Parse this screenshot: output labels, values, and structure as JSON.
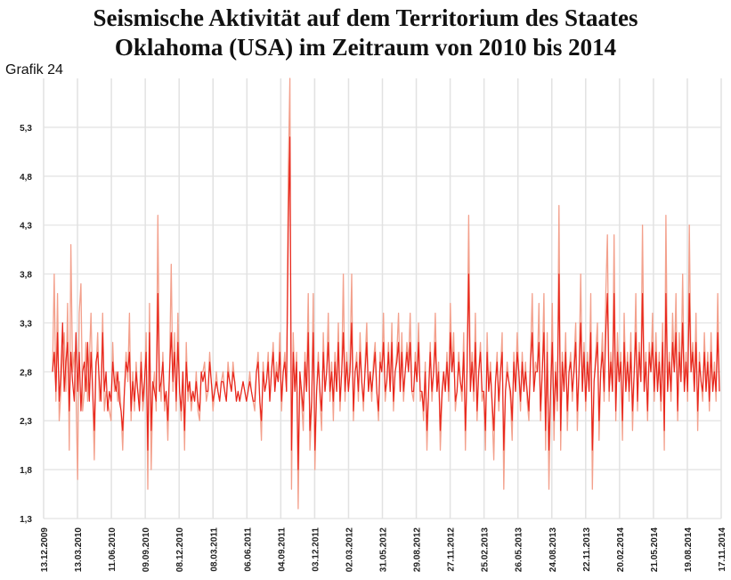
{
  "title_lines": [
    "Seismische Aktivität auf dem Territorium des Staates",
    "Oklahoma (USA) im Zeitraum von 2010 bis 2014"
  ],
  "caption": "Grafik 24",
  "colors": {
    "line_dark": "#e8261c",
    "line_light": "#f3a08c",
    "grid": "#e2e2e2"
  },
  "chart_data": {
    "type": "line",
    "ylim": [
      1.3,
      5.8
    ],
    "y_ticks": [
      "5,3",
      "4,8",
      "4,3",
      "3,8",
      "3,3",
      "2,8",
      "2,3",
      "1,8",
      "1,3"
    ],
    "y_tick_values": [
      5.3,
      4.8,
      4.3,
      3.8,
      3.3,
      2.8,
      2.3,
      1.8,
      1.3
    ],
    "x_ticks": [
      "13.12.2009",
      "13.03.2010",
      "11.06.2010",
      "09.09.2010",
      "08.12.2010",
      "08.03.2011",
      "06.06.2011",
      "04.09.2011",
      "03.12.2011",
      "02.03.2012",
      "31.05.2012",
      "29.08.2012",
      "27.11.2012",
      "25.02.2013",
      "26.05.2013",
      "24.08.2013",
      "22.11.2013",
      "20.02.2014",
      "21.05.2014",
      "19.08.2014",
      "17.11.2014"
    ],
    "grid": true,
    "legend": "none",
    "series": [
      {
        "values": [
          2.8,
          3.8,
          2.5,
          3.6,
          2.3,
          2.6,
          3.0,
          3.2,
          2.6,
          3.5,
          2.0,
          4.1,
          2.8,
          3.0,
          2.6,
          1.7,
          3.4,
          3.7,
          2.4,
          2.6,
          3.1,
          2.5,
          2.9,
          3.4,
          2.6,
          1.9,
          2.8,
          3.2,
          2.5,
          2.6,
          3.4,
          2.4,
          2.6,
          2.5,
          2.4,
          2.3,
          3.1,
          2.6,
          2.8,
          2.5,
          2.7,
          2.4,
          2.0,
          2.6,
          3.0,
          2.7,
          3.4,
          2.3,
          2.8,
          2.4,
          2.9,
          2.6,
          2.5,
          3.0,
          2.4,
          2.6,
          3.2,
          1.6,
          3.5,
          1.8,
          2.6,
          2.8,
          2.4,
          4.4,
          2.7,
          2.5,
          3.0,
          2.4,
          2.6,
          2.1,
          2.8,
          3.9,
          2.6,
          3.2,
          2.4,
          3.4,
          2.6,
          2.3,
          2.8,
          2.0,
          3.1,
          2.5,
          2.7,
          2.4,
          2.6,
          2.5,
          2.8,
          2.4,
          2.3,
          2.8,
          2.8,
          2.9,
          2.5,
          2.6,
          3.0,
          2.7,
          2.4,
          2.6,
          2.8,
          2.6,
          2.5,
          2.7,
          2.8,
          2.6,
          2.5,
          2.9,
          2.7,
          2.6,
          2.9,
          2.7,
          2.5,
          2.6,
          2.5,
          2.6,
          2.7,
          2.6,
          2.5,
          2.6,
          2.8,
          2.6,
          2.5,
          2.4,
          2.8,
          3.0,
          2.5,
          2.1,
          2.9,
          2.6,
          2.7,
          3.0,
          2.5,
          2.8,
          3.1,
          2.6,
          2.9,
          2.7,
          3.2,
          2.4,
          2.8,
          3.0,
          2.6,
          4.8,
          5.8,
          1.6,
          3.2,
          2.6,
          3.0,
          1.4,
          2.8,
          2.5,
          2.2,
          3.0,
          2.6,
          3.6,
          2.0,
          2.4,
          3.6,
          1.8,
          2.6,
          3.0,
          2.5,
          2.2,
          3.2,
          2.6,
          2.8,
          3.4,
          2.5,
          2.9,
          2.3,
          3.0,
          2.6,
          3.3,
          2.4,
          2.8,
          3.8,
          2.5,
          3.0,
          2.6,
          2.9,
          3.8,
          2.3,
          2.8,
          3.0,
          2.5,
          3.2,
          2.7,
          2.4,
          2.9,
          3.3,
          2.6,
          2.8,
          2.5,
          2.9,
          3.1,
          2.6,
          2.3,
          3.0,
          2.8,
          3.4,
          2.5,
          2.7,
          3.1,
          2.6,
          3.3,
          2.4,
          2.8,
          3.0,
          3.4,
          2.6,
          3.2,
          2.5,
          2.8,
          3.1,
          2.9,
          3.4,
          2.6,
          2.5,
          3.0,
          2.7,
          3.3,
          2.5,
          2.6,
          2.3,
          2.9,
          2.0,
          2.6,
          3.1,
          2.5,
          2.8,
          3.4,
          2.6,
          2.9,
          2.0,
          2.5,
          2.8,
          2.6,
          3.0,
          2.5,
          3.5,
          2.8,
          3.2,
          2.4,
          2.6,
          3.0,
          2.7,
          2.5,
          3.2,
          2.0,
          2.8,
          4.4,
          2.6,
          3.0,
          2.5,
          3.4,
          2.3,
          2.8,
          3.1,
          2.5,
          2.6,
          2.0,
          3.2,
          2.6,
          2.9,
          2.4,
          1.9,
          2.7,
          3.0,
          2.4,
          2.8,
          3.2,
          1.6,
          2.6,
          2.9,
          2.7,
          2.5,
          2.1,
          3.0,
          2.6,
          3.2,
          2.8,
          2.4,
          3.0,
          2.6,
          2.9,
          2.5,
          2.3,
          3.0,
          3.6,
          2.6,
          2.9,
          2.8,
          3.5,
          2.3,
          2.8,
          3.6,
          2.0,
          3.2,
          1.6,
          2.6,
          3.5,
          2.1,
          2.9,
          2.4,
          4.5,
          2.0,
          3.0,
          2.6,
          3.2,
          2.2,
          2.8,
          3.0,
          2.5,
          2.9,
          3.3,
          2.2,
          2.8,
          3.8,
          2.6,
          3.1,
          2.4,
          3.0,
          2.6,
          3.6,
          1.6,
          2.7,
          3.0,
          3.3,
          2.1,
          2.8,
          3.2,
          2.5,
          3.6,
          4.2,
          2.5,
          3.0,
          2.6,
          4.2,
          2.3,
          3.2,
          2.7,
          3.0,
          2.1,
          3.4,
          2.6,
          3.0,
          2.5,
          3.2,
          2.2,
          2.8,
          3.6,
          2.4,
          3.1,
          2.7,
          4.3,
          2.6,
          3.0,
          2.3,
          3.1,
          2.8,
          3.4,
          2.5,
          3.2,
          2.6,
          3.0,
          2.4,
          3.3,
          2.0,
          4.4,
          2.6,
          3.0,
          2.5,
          3.4,
          2.8,
          3.6,
          2.3,
          3.2,
          2.7,
          3.8,
          2.6,
          3.0,
          2.5,
          4.3,
          2.8,
          3.1,
          2.6,
          3.4,
          2.2,
          3.0,
          2.7,
          2.5,
          3.2,
          2.6,
          3.0,
          2.4,
          3.2,
          2.6,
          2.9,
          2.5,
          3.6,
          2.6
        ],
        "alt_values": [
          2.8,
          3.0,
          2.6,
          3.2,
          2.5,
          2.8,
          3.3,
          2.6,
          2.9,
          3.1,
          2.4,
          3.0,
          2.7,
          2.5,
          3.2,
          2.6,
          3.0,
          2.4,
          2.8,
          2.9,
          2.6,
          3.1,
          2.5,
          3.0,
          2.6,
          2.2,
          2.9,
          3.0,
          2.7,
          2.5,
          3.2,
          2.6,
          2.8,
          2.4,
          2.6,
          2.5,
          2.9,
          2.7,
          2.6,
          2.8,
          2.5,
          2.4,
          2.2,
          2.6,
          2.9,
          2.8,
          3.0,
          2.4,
          2.7,
          2.5,
          2.8,
          2.6,
          2.4,
          2.9,
          2.5,
          2.7,
          3.0,
          2.0,
          3.2,
          2.2,
          2.7,
          2.6,
          2.5,
          3.6,
          2.6,
          2.7,
          2.9,
          2.5,
          2.6,
          2.3,
          2.8,
          3.2,
          2.7,
          3.0,
          2.5,
          3.1,
          2.6,
          2.4,
          2.8,
          2.2,
          2.9,
          2.6,
          2.7,
          2.5,
          2.6,
          2.5,
          2.7,
          2.5,
          2.4,
          2.8,
          2.7,
          2.8,
          2.6,
          2.6,
          2.9,
          2.7,
          2.5,
          2.6,
          2.7,
          2.6,
          2.5,
          2.7,
          2.7,
          2.6,
          2.5,
          2.8,
          2.7,
          2.6,
          2.8,
          2.7,
          2.5,
          2.6,
          2.5,
          2.6,
          2.7,
          2.6,
          2.5,
          2.6,
          2.7,
          2.6,
          2.5,
          2.5,
          2.8,
          2.9,
          2.5,
          2.3,
          2.8,
          2.6,
          2.7,
          2.9,
          2.5,
          2.8,
          3.0,
          2.6,
          2.8,
          2.7,
          3.0,
          2.5,
          2.8,
          2.9,
          2.6,
          4.2,
          5.2,
          2.0,
          3.0,
          2.6,
          2.9,
          1.8,
          2.8,
          2.6,
          2.4,
          2.9,
          2.6,
          3.2,
          2.2,
          2.5,
          3.2,
          2.0,
          2.6,
          2.9,
          2.6,
          2.4,
          3.0,
          2.6,
          2.8,
          3.1,
          2.6,
          2.8,
          2.5,
          2.9,
          2.6,
          3.1,
          2.5,
          2.8,
          3.2,
          2.6,
          2.9,
          2.6,
          2.8,
          3.3,
          2.4,
          2.8,
          2.9,
          2.6,
          3.0,
          2.7,
          2.5,
          2.8,
          3.1,
          2.6,
          2.8,
          2.6,
          2.8,
          3.0,
          2.6,
          2.4,
          2.9,
          2.8,
          3.1,
          2.6,
          2.7,
          3.0,
          2.6,
          3.1,
          2.5,
          2.8,
          2.9,
          3.1,
          2.6,
          3.0,
          2.6,
          2.8,
          3.0,
          2.8,
          3.1,
          2.6,
          2.6,
          2.9,
          2.7,
          3.1,
          2.6,
          2.6,
          2.4,
          2.8,
          2.2,
          2.6,
          3.0,
          2.6,
          2.8,
          3.1,
          2.6,
          2.8,
          2.2,
          2.6,
          2.8,
          2.6,
          2.9,
          2.6,
          3.2,
          2.8,
          3.0,
          2.5,
          2.6,
          2.9,
          2.7,
          2.6,
          3.0,
          2.2,
          2.8,
          3.8,
          2.6,
          2.9,
          2.6,
          3.1,
          2.4,
          2.8,
          3.0,
          2.6,
          2.6,
          2.2,
          3.0,
          2.6,
          2.8,
          2.5,
          2.2,
          2.7,
          2.9,
          2.5,
          2.8,
          3.0,
          2.0,
          2.6,
          2.8,
          2.7,
          2.6,
          2.3,
          2.9,
          2.6,
          3.0,
          2.8,
          2.5,
          2.9,
          2.6,
          2.8,
          2.6,
          2.4,
          2.9,
          3.2,
          2.6,
          2.8,
          2.8,
          3.1,
          2.4,
          2.8,
          3.2,
          2.2,
          3.0,
          2.0,
          2.6,
          3.1,
          2.3,
          2.8,
          2.5,
          3.8,
          2.2,
          2.9,
          2.6,
          3.0,
          2.4,
          2.8,
          2.9,
          2.6,
          2.8,
          3.1,
          2.4,
          2.8,
          3.3,
          2.6,
          3.0,
          2.5,
          2.9,
          2.6,
          3.2,
          2.0,
          2.7,
          2.9,
          3.1,
          2.3,
          2.8,
          3.0,
          2.6,
          3.2,
          3.6,
          2.6,
          2.9,
          2.6,
          3.6,
          2.4,
          3.0,
          2.7,
          2.9,
          2.3,
          3.1,
          2.6,
          2.9,
          2.6,
          3.0,
          2.4,
          2.8,
          3.2,
          2.5,
          3.0,
          2.7,
          3.6,
          2.6,
          2.9,
          2.4,
          3.0,
          2.8,
          3.1,
          2.6,
          3.0,
          2.6,
          2.9,
          2.5,
          3.1,
          2.2,
          3.6,
          2.6,
          2.9,
          2.6,
          3.1,
          2.8,
          3.2,
          2.4,
          3.0,
          2.7,
          3.3,
          2.6,
          2.9,
          2.6,
          3.6,
          2.8,
          3.0,
          2.6,
          3.1,
          2.4,
          2.9,
          2.7,
          2.6,
          3.0,
          2.6,
          2.9,
          2.5,
          3.0,
          2.6,
          2.8,
          2.6,
          3.2,
          2.6
        ]
      }
    ]
  }
}
